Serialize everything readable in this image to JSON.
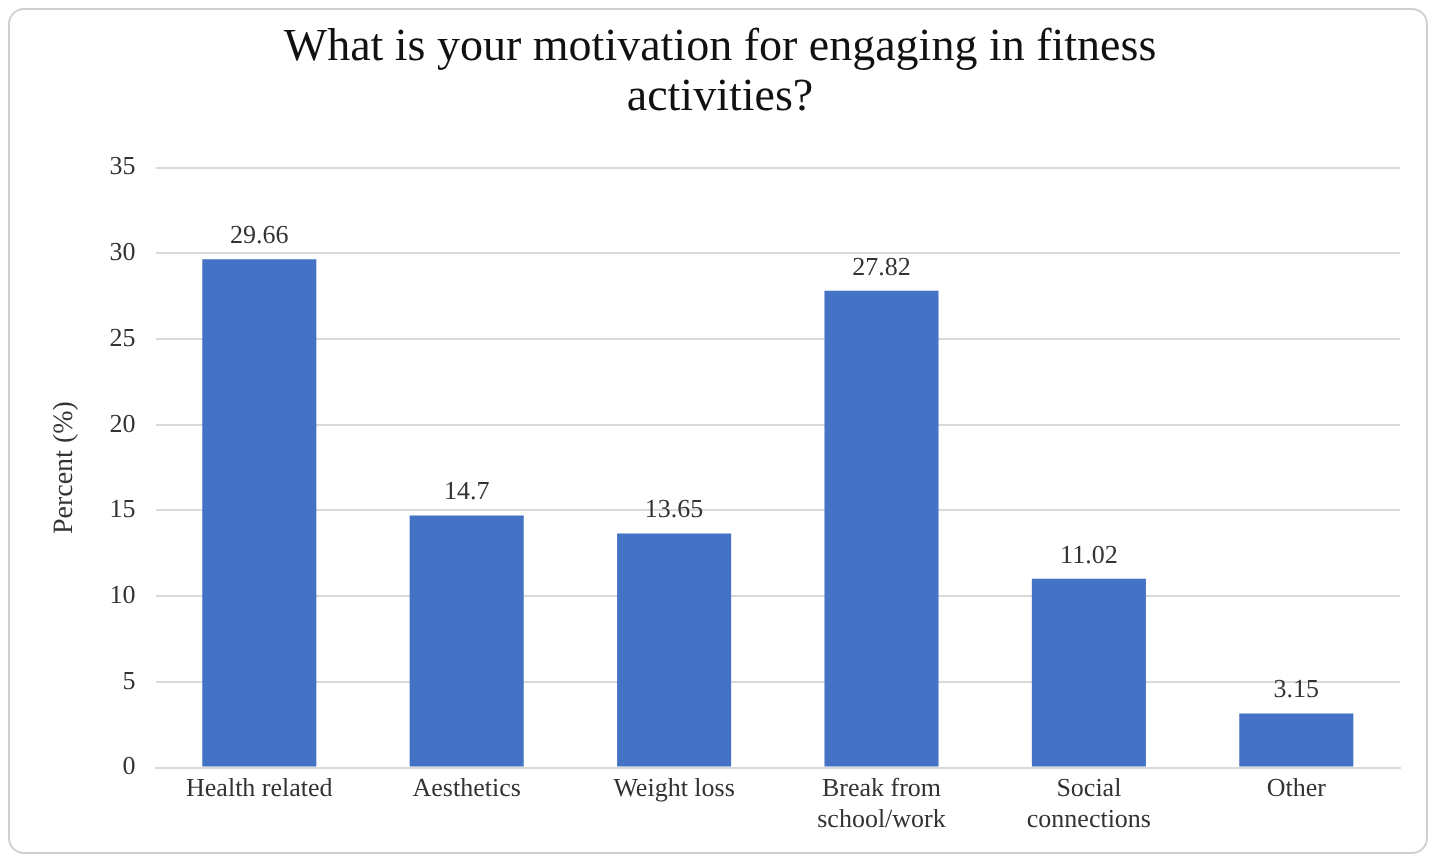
{
  "chart_data": {
    "type": "bar",
    "title": "What is your motivation for engaging in fitness activities?",
    "ylabel": "Percent (%)",
    "categories": [
      "Health related",
      "Aesthetics",
      "Weight loss",
      "Break from school/work",
      "Social connections",
      "Other"
    ],
    "values": [
      29.66,
      14.7,
      13.65,
      27.82,
      11.02,
      3.15
    ],
    "color": "#4472c4",
    "ylim": [
      0,
      35
    ],
    "yticks": [
      0,
      5,
      10,
      15,
      20,
      25,
      30,
      35
    ],
    "grid": "y",
    "data_labels": true
  }
}
